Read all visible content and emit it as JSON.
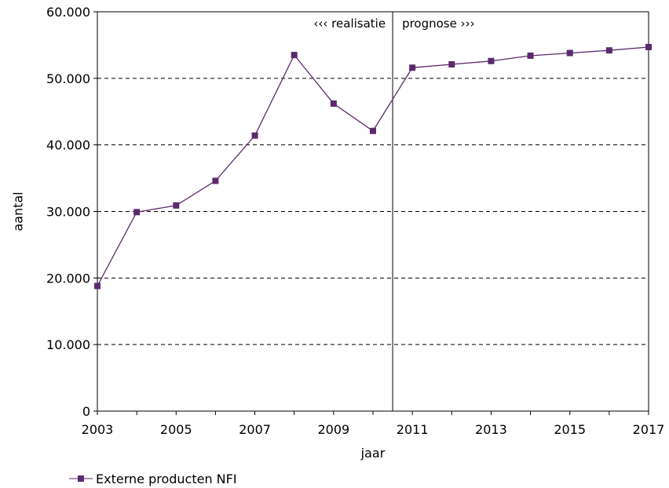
{
  "chart_data": {
    "type": "line",
    "xlabel": "jaar",
    "ylabel": "aantal",
    "xlim": [
      2003,
      2017
    ],
    "ylim": [
      0,
      60000
    ],
    "y_ticks": [
      0,
      10000,
      20000,
      30000,
      40000,
      50000,
      60000
    ],
    "y_tick_labels": [
      "0",
      "10.000",
      "20.000",
      "30.000",
      "40.000",
      "50.000",
      "60.000"
    ],
    "x_ticks": [
      2003,
      2005,
      2007,
      2009,
      2011,
      2013,
      2015,
      2017
    ],
    "x_tick_labels": [
      "2003",
      "2005",
      "2007",
      "2009",
      "2011",
      "2013",
      "2015",
      "2017"
    ],
    "grid": "horizontal dashed",
    "legend_position": "bottom-left",
    "divider_x": 2010.5,
    "annotations": {
      "left": "‹‹‹ realisatie",
      "right": "prognose ›››"
    },
    "series": [
      {
        "name": "Externe producten NFI",
        "color": "#5b2a6e",
        "marker": "square",
        "x": [
          2003,
          2004,
          2005,
          2006,
          2007,
          2008,
          2009,
          2010,
          2011,
          2012,
          2013,
          2014,
          2015,
          2016,
          2017
        ],
        "values": [
          18800,
          29900,
          30900,
          34600,
          41400,
          53500,
          46200,
          42100,
          51600,
          52100,
          52600,
          53400,
          53800,
          54200,
          54700
        ]
      }
    ]
  }
}
